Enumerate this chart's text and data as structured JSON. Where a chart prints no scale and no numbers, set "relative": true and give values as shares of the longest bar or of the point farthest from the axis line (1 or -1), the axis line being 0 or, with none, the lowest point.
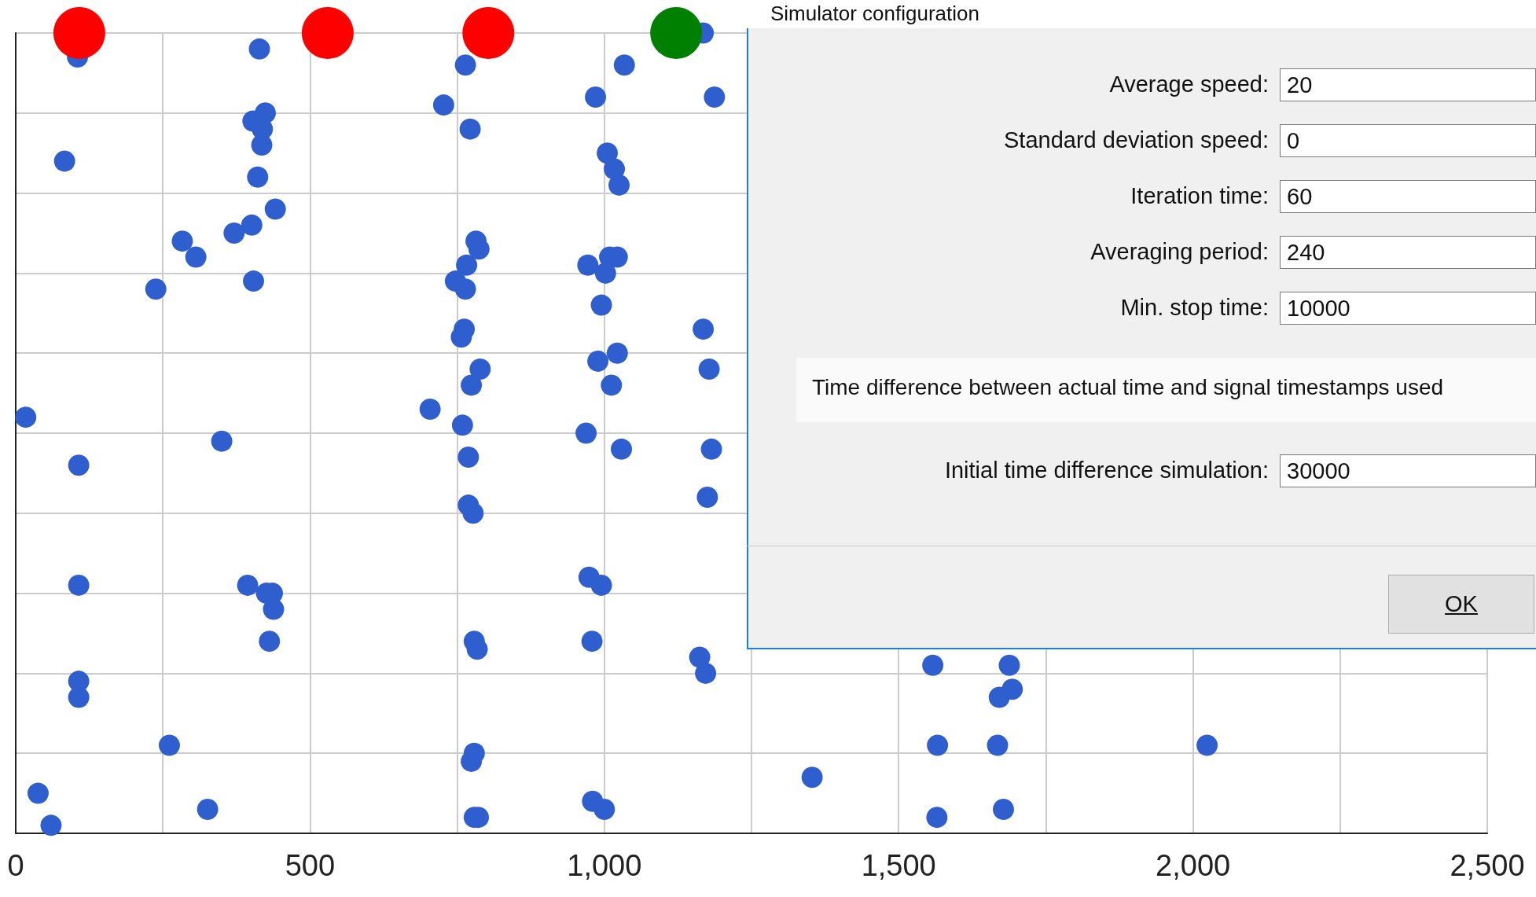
{
  "chart_data": {
    "type": "scatter",
    "relative": true,
    "xlim": [
      0,
      2500
    ],
    "xticks": [
      0,
      {
        "value": 250,
        "label": null
      },
      500,
      {
        "value": 750,
        "label": null
      },
      {
        "value": 1000,
        "label": "1,000"
      },
      {
        "value": 1250,
        "label": null
      },
      {
        "value": 1500,
        "label": "1,500"
      },
      {
        "value": 1750,
        "label": null
      },
      {
        "value": 2000,
        "label": "2,000"
      },
      {
        "value": 2250,
        "label": null
      },
      {
        "value": 2500,
        "label": "2,500"
      }
    ],
    "grid": true,
    "marker": "circle",
    "annotations": [
      "Simulator configuration",
      "Average speed:",
      "20",
      "Standard deviation speed:",
      "0",
      "Iteration time:",
      "60",
      "Averaging period:",
      "240",
      "Min. stop time:",
      "10000",
      "Time difference between actual time and signal timestamps used",
      "Initial time difference simulation:",
      "30000",
      "OK"
    ],
    "series": [
      {
        "color": "#2f5ecf",
        "x": [
          105,
          414,
          764,
          1034,
          1168,
          985,
          1187,
          83,
          727,
          772,
          403,
          424,
          419,
          418,
          411,
          1005,
          1017,
          1025,
          441,
          371,
          401,
          283,
          306,
          238,
          404,
          782,
          787,
          766,
          747,
          764,
          972,
          1009,
          1022,
          1002,
          995,
          762,
          757,
          1168,
          1178,
          989,
          1022,
          789,
          774,
          1012,
          704,
          17,
          759,
          969,
          350,
          1029,
          769,
          107,
          1182,
          1175,
          769,
          777,
          107,
          394,
          426,
          436,
          438,
          974,
          995,
          431,
          779,
          784,
          979,
          1162,
          1172,
          1558,
          1688,
          1693,
          1671,
          107,
          107,
          261,
          779,
          774,
          1566,
          1668,
          2024,
          38,
          1353,
          326,
          60,
          779,
          786,
          980,
          1000,
          1565,
          1678
        ],
        "values": [
          0.97,
          0.98,
          0.96,
          0.96,
          1.0,
          0.92,
          0.92,
          0.84,
          0.91,
          0.88,
          0.89,
          0.9,
          0.88,
          0.86,
          0.82,
          0.85,
          0.83,
          0.81,
          0.78,
          0.75,
          0.76,
          0.74,
          0.72,
          0.68,
          0.69,
          0.74,
          0.73,
          0.71,
          0.69,
          0.68,
          0.71,
          0.72,
          0.72,
          0.7,
          0.66,
          0.63,
          0.62,
          0.63,
          0.58,
          0.59,
          0.6,
          0.58,
          0.56,
          0.56,
          0.53,
          0.52,
          0.51,
          0.5,
          0.49,
          0.48,
          0.47,
          0.46,
          0.48,
          0.42,
          0.41,
          0.4,
          0.31,
          0.31,
          0.3,
          0.3,
          0.28,
          0.32,
          0.31,
          0.24,
          0.24,
          0.23,
          0.24,
          0.22,
          0.2,
          0.21,
          0.21,
          0.18,
          0.17,
          0.19,
          0.17,
          0.11,
          0.1,
          0.09,
          0.11,
          0.11,
          0.11,
          0.05,
          0.07,
          0.03,
          0.01,
          0.02,
          0.02,
          0.04,
          0.03,
          0.02,
          0.03
        ]
      },
      {
        "type": "bubble",
        "color": "#ff0000",
        "x": [
          108,
          530,
          803
        ],
        "values": [
          1,
          1,
          1
        ],
        "sizes": [
          1,
          1,
          1
        ]
      },
      {
        "type": "bubble",
        "color": "#008000",
        "x": [
          1122
        ],
        "values": [
          1
        ],
        "sizes": [
          1
        ]
      }
    ]
  }
}
